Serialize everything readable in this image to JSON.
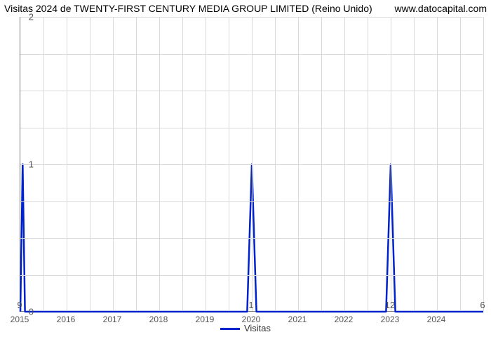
{
  "title_left": "Visitas 2024 de TWENTY-FIRST CENTURY MEDIA GROUP LIMITED (Reino Unido)",
  "title_right": "www.datocapital.com",
  "chart": {
    "type": "line",
    "x_years": [
      2015,
      2016,
      2017,
      2018,
      2019,
      2020,
      2021,
      2022,
      2023,
      2024,
      2025
    ],
    "xlim": [
      2015,
      2025
    ],
    "ylim": [
      0,
      2
    ],
    "yticks": [
      0,
      1,
      2
    ],
    "minor_hgrid": [
      0.25,
      0.5,
      0.75,
      1.25,
      1.5,
      1.75
    ],
    "vgrid_years": [
      2015,
      2016,
      2017,
      2018,
      2019,
      2020,
      2021,
      2022,
      2023,
      2024,
      2025
    ],
    "minor_vgrid": [
      2015.5,
      2016.5,
      2017.5,
      2018.5,
      2019.5,
      2020.5,
      2021.5,
      2022.5,
      2023.5,
      2024.5
    ],
    "series": {
      "name": "Visitas",
      "color": "#0022cc",
      "line_width": 2.5,
      "points": [
        [
          2015.0,
          0
        ],
        [
          2015.05,
          1
        ],
        [
          2015.1,
          0
        ],
        [
          2019.9,
          0
        ],
        [
          2020.0,
          1
        ],
        [
          2020.1,
          0
        ],
        [
          2022.9,
          0
        ],
        [
          2023.0,
          1
        ],
        [
          2023.1,
          0
        ],
        [
          2025.0,
          0
        ]
      ]
    },
    "data_labels": [
      {
        "x": 2015.0,
        "text": "9"
      },
      {
        "x": 2020.0,
        "text": "1"
      },
      {
        "x": 2023.0,
        "text": "12"
      },
      {
        "x": 2025.0,
        "text": "6"
      }
    ],
    "grid_color": "#d9d9d9",
    "axis_color": "#777777",
    "background_color": "#ffffff",
    "title_fontsize": 14,
    "tick_fontsize": 12
  },
  "legend": {
    "label": "Visitas",
    "color": "#0022cc"
  }
}
